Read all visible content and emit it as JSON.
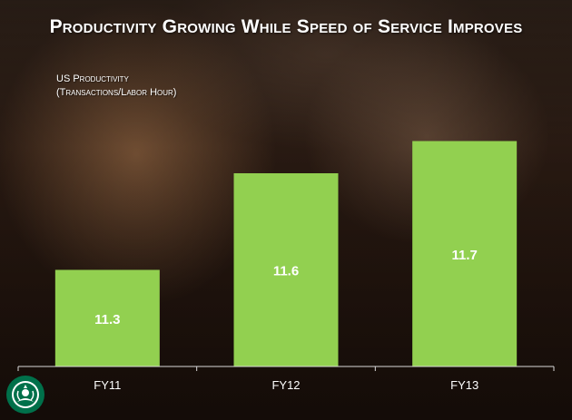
{
  "title": "Productivity Growing While Speed of Service Improves",
  "chart_data": {
    "type": "bar",
    "title": "Productivity Growing While Speed of Service Improves",
    "ylabel_line1": "US Productivity",
    "ylabel_line2": "(Transactions/Labor Hour)",
    "xlabel": "",
    "categories": [
      "FY11",
      "FY12",
      "FY13"
    ],
    "values": [
      11.3,
      11.6,
      11.7
    ],
    "ylim": [
      11.0,
      11.8
    ],
    "bar_color": "#92d050",
    "label_color": "#ffffff"
  },
  "brand": {
    "logo_icon": "starbucks-siren-logo-icon",
    "logo_color": "#00704a"
  }
}
